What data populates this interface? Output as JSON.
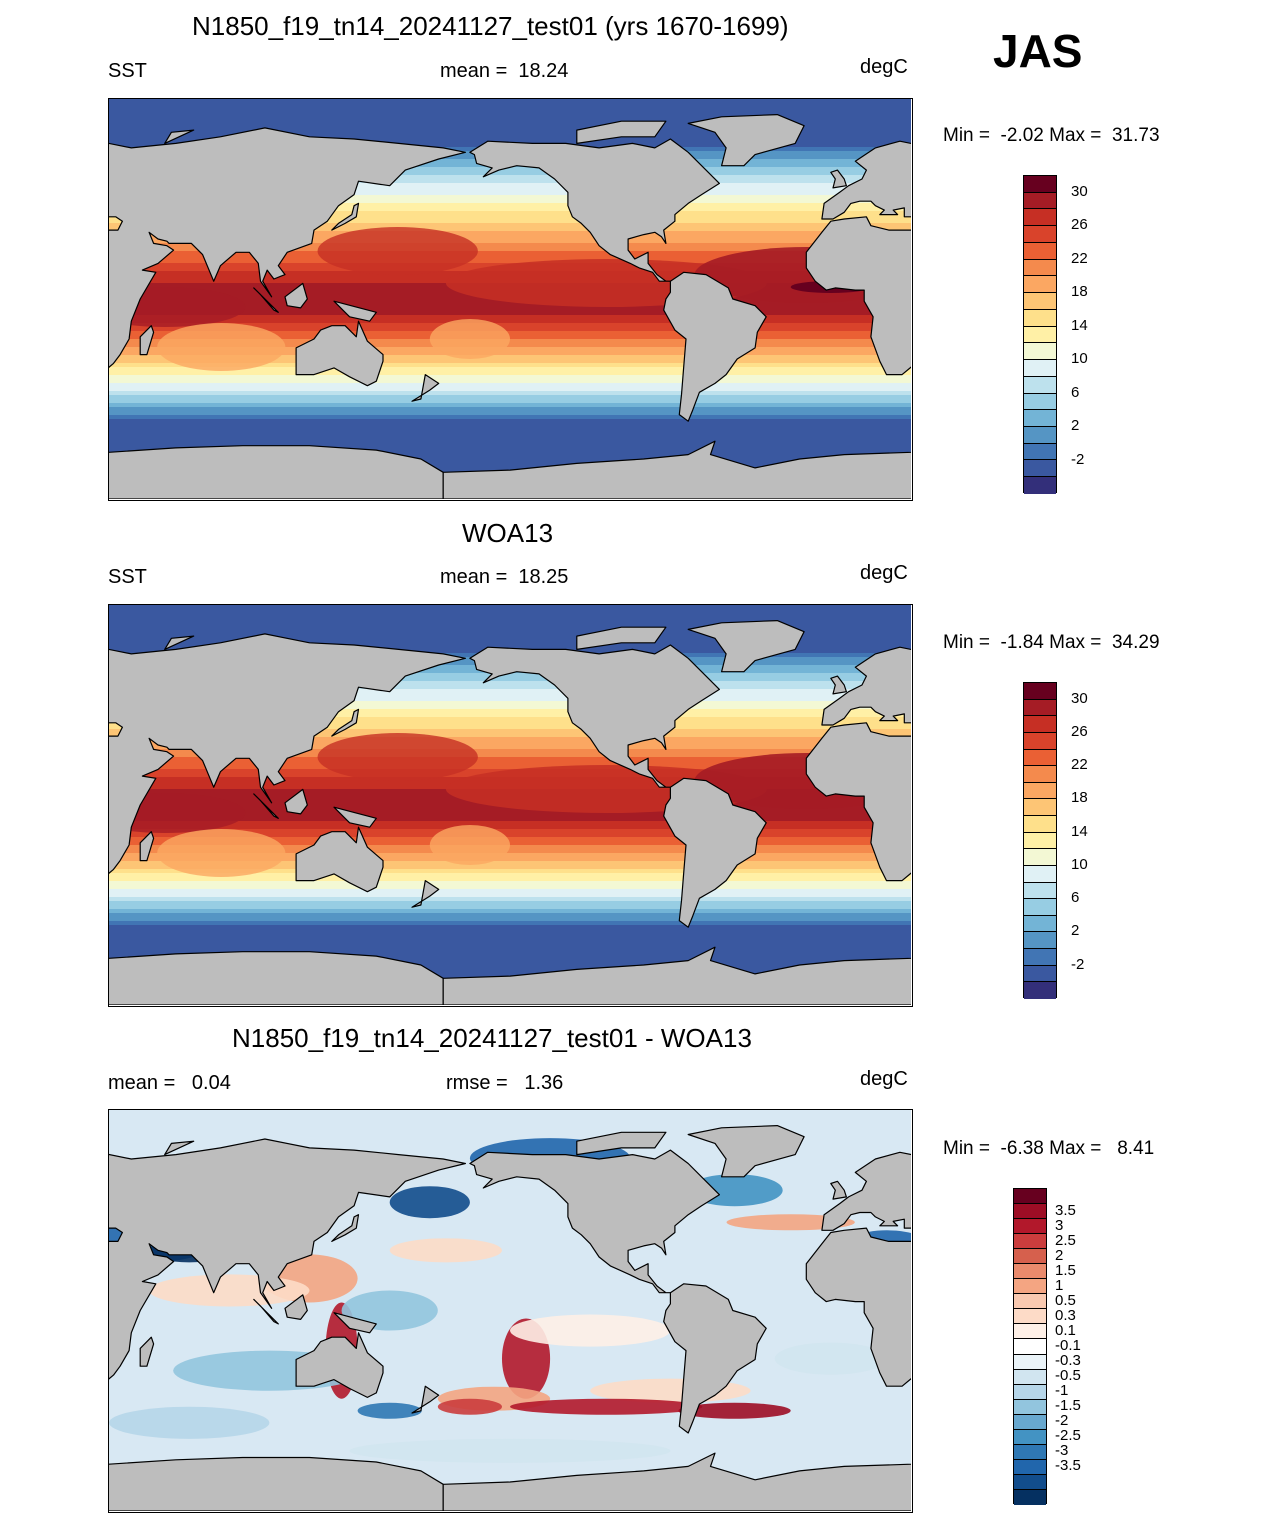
{
  "season": "JAS",
  "panels": [
    {
      "title": "N1850_f19_tn14_20241127_test01 (yrs 1670-1699)",
      "left": "SST",
      "center": "mean =  18.24",
      "right": "degC",
      "minmax": "Min =  -2.02 Max =  31.73",
      "type": "sst"
    },
    {
      "title": "WOA13",
      "left": "SST",
      "center": "mean =  18.25",
      "right": "degC",
      "minmax": "Min =  -1.84 Max =  34.29",
      "type": "sst"
    },
    {
      "title": "N1850_f19_tn14_20241127_test01 - WOA13",
      "left": "mean =   0.04",
      "center": "rmse =   1.36",
      "right": "degC",
      "minmax": "Min =  -6.38 Max =   8.41",
      "type": "diff"
    }
  ],
  "colorbars": {
    "sst": {
      "colors": [
        "#67001f",
        "#a51c25",
        "#c62f24",
        "#d9432b",
        "#ea6034",
        "#f48a4d",
        "#fba762",
        "#fdc575",
        "#fee08b",
        "#fff0a6",
        "#f3f8d4",
        "#e0f1f5",
        "#bde1ed",
        "#97cde3",
        "#73b4d6",
        "#5595c4",
        "#4175b4",
        "#3a58a0",
        "#332f7a"
      ],
      "labels": [
        "30",
        "26",
        "22",
        "18",
        "14",
        "10",
        "6",
        "2",
        "-2"
      ]
    },
    "diff": {
      "colors": [
        "#67001f",
        "#9d0d25",
        "#b2182b",
        "#cb3d3d",
        "#d6604d",
        "#ea8a6c",
        "#f4a582",
        "#f9c9b0",
        "#fddbc7",
        "#fef0e7",
        "#ffffff",
        "#eaf3f8",
        "#d1e5f0",
        "#b6d6e9",
        "#92c5de",
        "#68a8cf",
        "#4393c3",
        "#2f78b4",
        "#2166ac",
        "#124d8c",
        "#053061"
      ],
      "labels": [
        "3.5",
        "3",
        "2.5",
        "2",
        "1.5",
        "1",
        "0.5",
        "0.3",
        "0.1",
        "-0.1",
        "-0.3",
        "-0.5",
        "-1",
        "-1.5",
        "-2",
        "-2.5",
        "-3",
        "-3.5"
      ]
    }
  },
  "colors": {
    "land": "#bdbdbd",
    "coast": "#000000"
  }
}
